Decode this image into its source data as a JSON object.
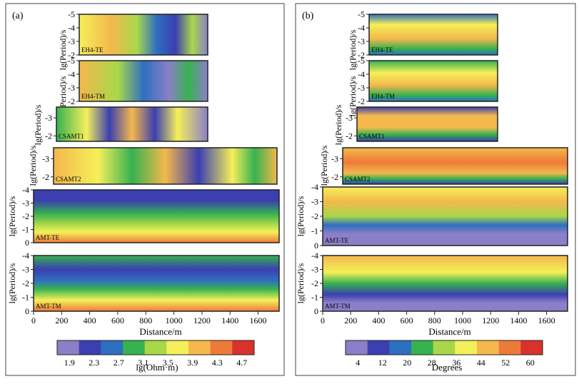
{
  "figure": {
    "panels": [
      {
        "letter": "(a)",
        "colorbar_label": "lg(Ohm·m)",
        "colorbar_ticks": [
          "1.9",
          "2.3",
          "2.7",
          "3.1",
          "3.5",
          "3.9",
          "4.3",
          "4.7"
        ]
      },
      {
        "letter": "(b)",
        "colorbar_label": "Degrees",
        "colorbar_ticks": [
          "4",
          "12",
          "20",
          "28",
          "36",
          "44",
          "52",
          "60"
        ]
      }
    ],
    "ylabel": "lg(Period)/s",
    "xlabel": "Distance/m",
    "xticks": [
      "0",
      "200",
      "400",
      "600",
      "800",
      "1000",
      "1200",
      "1400",
      "1600"
    ]
  },
  "chart_data": [
    {
      "type": "heatmap",
      "panel": "(a)",
      "quantity": "lg(Ohm·m)",
      "colorscale": [
        "#8b7fc8",
        "#3b3fb0",
        "#2f6fc0",
        "#36b24f",
        "#a8d84a",
        "#f5ef5a",
        "#f4b84c",
        "#ee7a3a",
        "#d8322a"
      ],
      "vmin": 1.9,
      "vmax": 4.7,
      "colorbar_ticks": [
        1.9,
        2.3,
        2.7,
        3.1,
        3.5,
        3.9,
        4.3,
        4.7
      ],
      "x_axis": {
        "label": "Distance/m",
        "range": [
          0,
          1750
        ],
        "ticks": [
          0,
          200,
          400,
          600,
          800,
          1000,
          1200,
          1400,
          1600
        ]
      },
      "subplots": [
        {
          "name": "EH4-TE",
          "yticks": [
            -5,
            -4,
            -3,
            -2
          ],
          "ylim": [
            -2,
            -5
          ],
          "x_range": [
            680,
            1300
          ]
        },
        {
          "name": "EH4-TM",
          "yticks": [
            -5,
            -4,
            -3,
            -2
          ],
          "ylim": [
            -2,
            -5
          ],
          "x_range": [
            680,
            1300
          ]
        },
        {
          "name": "CSAMT1",
          "yticks": [
            -3,
            -2
          ],
          "ylim": [
            -1.7,
            -3.6
          ],
          "x_range": [
            480,
            1300
          ]
        },
        {
          "name": "CSAMT2",
          "yticks": [
            -3,
            -2
          ],
          "ylim": [
            -1.6,
            -3.6
          ],
          "x_range": [
            220,
            1800
          ]
        },
        {
          "name": "AMT-TE",
          "yticks": [
            -4,
            -3,
            -2,
            -1,
            0
          ],
          "ylim": [
            0,
            -4
          ],
          "x_range": [
            0,
            1750
          ]
        },
        {
          "name": "AMT-TM",
          "yticks": [
            -4,
            -3,
            -2,
            -1,
            0
          ],
          "ylim": [
            0,
            -4
          ],
          "x_range": [
            0,
            1750
          ]
        }
      ]
    },
    {
      "type": "heatmap",
      "panel": "(b)",
      "quantity": "Degrees",
      "colorscale": [
        "#8b7fc8",
        "#3b3fb0",
        "#2f6fc0",
        "#36b24f",
        "#a8d84a",
        "#f5ef5a",
        "#f4b84c",
        "#ee7a3a",
        "#d8322a"
      ],
      "vmin": 4,
      "vmax": 60,
      "colorbar_ticks": [
        4,
        12,
        20,
        28,
        36,
        44,
        52,
        60
      ],
      "x_axis": {
        "label": "Distance/m",
        "range": [
          0,
          1750
        ],
        "ticks": [
          0,
          200,
          400,
          600,
          800,
          1000,
          1200,
          1400,
          1600
        ]
      },
      "subplots": [
        {
          "name": "EH4-TE",
          "yticks": [
            -5,
            -4,
            -3,
            -2
          ],
          "ylim": [
            -2,
            -5
          ],
          "x_range": [
            680,
            1300
          ]
        },
        {
          "name": "EH4-TM",
          "yticks": [
            -5,
            -4,
            -3,
            -2
          ],
          "ylim": [
            -2,
            -5
          ],
          "x_range": [
            680,
            1300
          ]
        },
        {
          "name": "CSAMT1",
          "yticks": [
            -3,
            -2
          ],
          "ylim": [
            -1.7,
            -3.6
          ],
          "x_range": [
            480,
            1300
          ]
        },
        {
          "name": "CSAMT2",
          "yticks": [
            -3,
            -2
          ],
          "ylim": [
            -1.6,
            -3.6
          ],
          "x_range": [
            220,
            1800
          ]
        },
        {
          "name": "AMT-TE",
          "yticks": [
            -4,
            -3,
            -2,
            -1,
            0
          ],
          "ylim": [
            0,
            -4
          ],
          "x_range": [
            0,
            1750
          ]
        },
        {
          "name": "AMT-TM",
          "yticks": [
            -4,
            -3,
            -2,
            -1,
            0
          ],
          "ylim": [
            0,
            -4
          ],
          "x_range": [
            0,
            1750
          ]
        }
      ]
    }
  ]
}
